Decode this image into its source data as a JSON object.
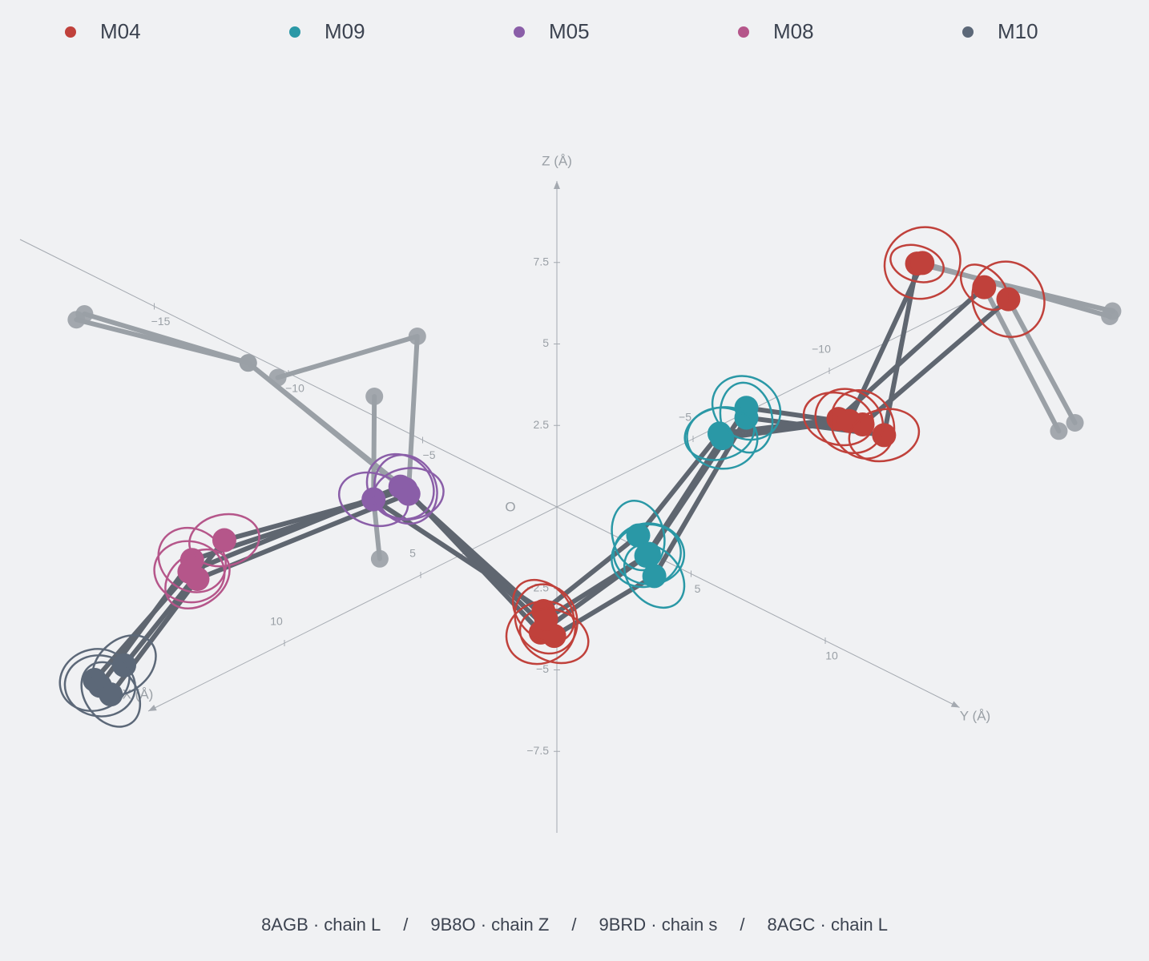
{
  "chart_data": {
    "type": "scatter3d",
    "xlabel": "X (Å)",
    "ylabel": "Y (Å)",
    "zlabel": "Z (Å)",
    "origin_label": "O",
    "xlim": [
      -15,
      15
    ],
    "ylim": [
      -20,
      15
    ],
    "zlim": [
      -10,
      10
    ],
    "xticks": [
      {
        "value": -10,
        "label": "−10"
      },
      {
        "value": -5,
        "label": "−5"
      },
      5,
      10
    ],
    "yticks": [
      {
        "value": -15,
        "label": "−15"
      },
      {
        "value": -10,
        "label": "−10"
      },
      {
        "value": -5,
        "label": "−5"
      },
      5,
      10
    ],
    "zticks": [
      {
        "value": -7.5,
        "label": "−7.5"
      },
      {
        "value": -5,
        "label": "−5"
      },
      {
        "value": -2.5,
        "label": "−2.5"
      },
      2.5,
      5,
      7.5
    ],
    "series": [
      {
        "name": "M04",
        "color": "#c0413b"
      },
      {
        "name": "M09",
        "color": "#2a98a6"
      },
      {
        "name": "M05",
        "color": "#8a5ea8"
      },
      {
        "name": "M08",
        "color": "#b5568a"
      },
      {
        "name": "M10",
        "color": "#5c6878"
      }
    ],
    "residues": [
      "M10",
      "M08",
      "M05",
      "M04",
      "M09",
      "M09",
      "M04",
      "M04"
    ],
    "bond_color": "#5f6670",
    "chains": [
      {
        "name": "8AGB · chain L",
        "x": [
          8,
          6,
          2,
          0,
          -2,
          -4,
          -6,
          -8
        ],
        "y": [
          -8.0,
          -6.3,
          -4.8,
          -0.5,
          1.0,
          2.0,
          4.4,
          7.8
        ],
        "z": [
          -4.8,
          -1.1,
          -0.9,
          -3.4,
          -1.3,
          1.4,
          2.0,
          6.6
        ]
      },
      {
        "name": "9B8O · chain Z",
        "x": [
          8,
          6,
          2,
          0,
          -2,
          -4,
          -6,
          -8
        ],
        "y": [
          -8.9,
          -7.5,
          -3.6,
          -0.6,
          1.4,
          3.0,
          5.3,
          8.7
        ],
        "z": [
          -5.8,
          -2.2,
          -0.1,
          -4.1,
          -1.7,
          2.6,
          2.2,
          6.6
        ]
      },
      {
        "name": "9BRD · chain s",
        "x": [
          8,
          6,
          2,
          0,
          -2,
          -4,
          -6,
          -8
        ],
        "y": [
          -8.5,
          -7.3,
          -3.5,
          -0.1,
          1.6,
          3.0,
          6.1,
          5.3
        ],
        "z": [
          -5.9,
          -2.7,
          -0.2,
          -4.0,
          -2.3,
          2.3,
          2.2,
          6.3
        ]
      },
      {
        "name": "8AGC · chain L",
        "x": [
          8,
          6,
          2,
          0,
          -2,
          -4,
          -6,
          -8
        ],
        "y": [
          -9.1,
          -7.6,
          -3.8,
          -0.4,
          1.3,
          2.1,
          4.8,
          5.5
        ],
        "z": [
          -5.7,
          -2.6,
          -0.1,
          -3.6,
          -1.8,
          1.3,
          2.1,
          6.4
        ]
      }
    ],
    "flank_color": "#9aa0a6",
    "flanks": [
      {
        "x": [
          0,
          0,
          2
        ],
        "y": [
          -17.9,
          -11.5,
          -3.8
        ],
        "z": [
          -1.6,
          -0.3,
          -0.1
        ]
      },
      {
        "x": [
          0,
          0,
          2
        ],
        "y": [
          -17.6,
          -11.5,
          -3.6
        ],
        "z": [
          -1.3,
          -0.3,
          -0.1
        ]
      },
      {
        "x": [
          0,
          0,
          2
        ],
        "y": [
          -10.4,
          -5.2,
          -3.5
        ],
        "z": [
          -0.3,
          3.1,
          -0.2
        ]
      },
      {
        "x": [
          0,
          2
        ],
        "y": [
          -6.8,
          -4.8
        ],
        "z": [
          0.6,
          -0.9
        ]
      },
      {
        "x": [
          0,
          2
        ],
        "y": [
          -6.6,
          -4.8
        ],
        "z": [
          -4.3,
          -0.9
        ]
      },
      {
        "x": [
          0,
          -8
        ],
        "y": [
          20.7,
          5.3
        ],
        "z": [
          14.5,
          6.3
        ]
      },
      {
        "x": [
          0,
          -8
        ],
        "y": [
          20.6,
          5.5
        ],
        "z": [
          14.3,
          6.4
        ]
      },
      {
        "x": [
          0,
          -8
        ],
        "y": [
          18.7,
          7.8
        ],
        "z": [
          10.0,
          6.6
        ]
      },
      {
        "x": [
          0,
          -8
        ],
        "y": [
          19.3,
          8.7
        ],
        "z": [
          10.5,
          6.6
        ]
      }
    ]
  }
}
